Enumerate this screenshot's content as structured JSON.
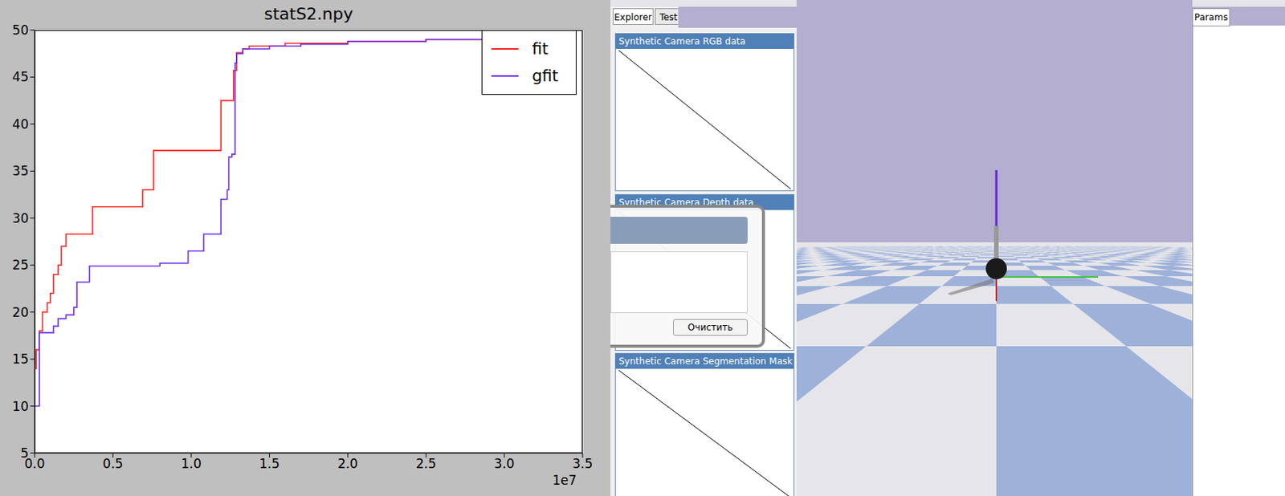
{
  "chart_data": {
    "type": "line",
    "title": "statS2.npy",
    "x_offset_text": "1e7",
    "xlim": [
      0,
      3.5
    ],
    "xticks": [
      {
        "value": 0,
        "label": "0.0"
      },
      {
        "value": 0.5,
        "label": "0.5"
      },
      {
        "value": 1,
        "label": "1.0"
      },
      {
        "value": 1.5,
        "label": "1.5"
      },
      {
        "value": 2,
        "label": "2.0"
      },
      {
        "value": 2.5,
        "label": "2.5"
      },
      {
        "value": 3,
        "label": "3.0"
      },
      {
        "value": 3.5,
        "label": "3.5"
      }
    ],
    "ylim": [
      5,
      50
    ],
    "yticks": [
      5,
      10,
      15,
      20,
      25,
      30,
      35,
      40,
      45,
      50
    ],
    "grid": false,
    "legend": "upper right",
    "line_style": "step",
    "series": [
      {
        "name": "fit",
        "color": "#ff2020",
        "x": [
          0,
          0.01,
          0.03,
          0.05,
          0.08,
          0.1,
          0.12,
          0.15,
          0.17,
          0.2,
          0.37,
          0.69,
          0.76,
          1.19,
          1.27,
          1.29,
          1.33,
          1.37,
          1.6,
          2.0,
          2.5,
          3.0
        ],
        "values": [
          14,
          16,
          18,
          20,
          21,
          22,
          24,
          25,
          27,
          28.3,
          31.2,
          33,
          37.2,
          42.5,
          45.7,
          47.6,
          48,
          48.3,
          48.6,
          48.8,
          49,
          49.2
        ]
      },
      {
        "name": "gfit",
        "color": "#6a2cf0",
        "x": [
          0,
          0.03,
          0.12,
          0.15,
          0.2,
          0.25,
          0.27,
          0.35,
          0.8,
          0.98,
          1.08,
          1.19,
          1.23,
          1.24,
          1.26,
          1.28,
          1.29,
          1.33,
          1.5,
          1.7,
          2.0,
          2.5,
          3.0
        ],
        "values": [
          10,
          17.8,
          18.5,
          19.3,
          19.7,
          20.5,
          23.2,
          24.9,
          25.2,
          26.5,
          28.3,
          32,
          33,
          36.5,
          36.8,
          46.5,
          47.5,
          48,
          48.3,
          48.5,
          48.8,
          49,
          49.2
        ]
      }
    ]
  },
  "screenshot": {
    "left_tabs": [
      "Explorer",
      "Test"
    ],
    "right_tab": "Params",
    "panels": [
      "Synthetic Camera RGB data",
      "Synthetic Camera Depth data",
      "Synthetic Camera Segmentation Mask"
    ],
    "dialog_button": "Очистить"
  }
}
